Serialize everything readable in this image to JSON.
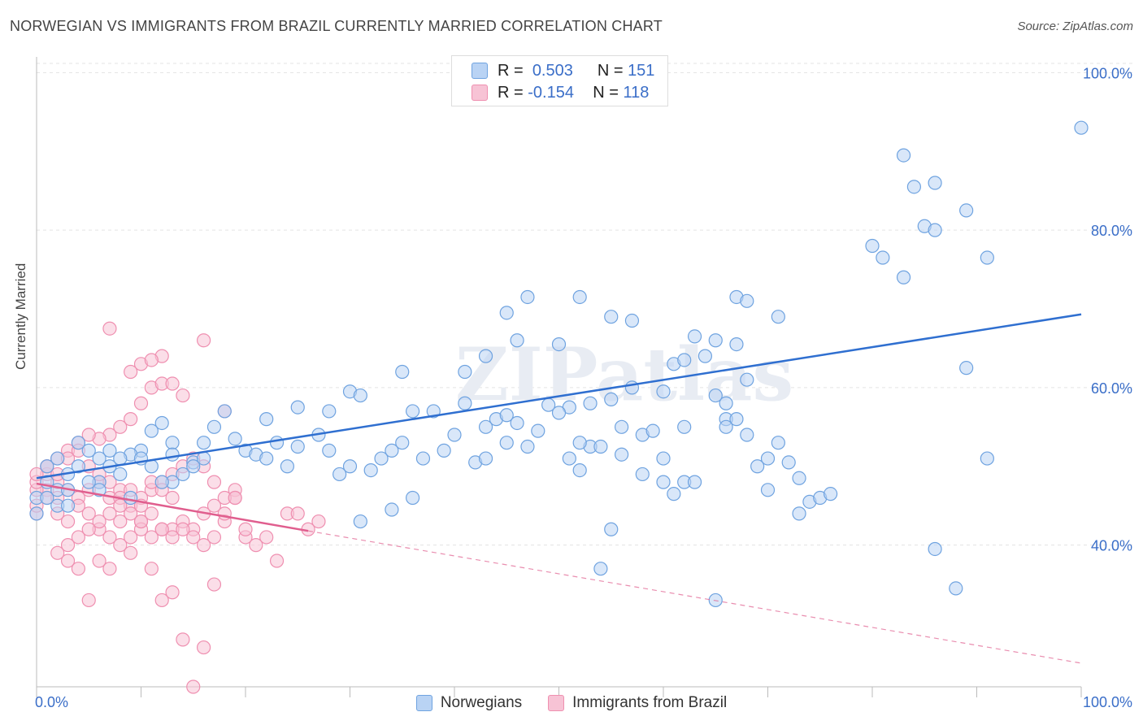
{
  "title": "NORWEGIAN VS IMMIGRANTS FROM BRAZIL CURRENTLY MARRIED CORRELATION CHART",
  "source": "Source: ZipAtlas.com",
  "watermark": "ZIPatlas",
  "colors": {
    "blue": "#6fa3e0",
    "blue_fill": "#b9d3f4",
    "blue_line": "#2f6fd0",
    "pink": "#ef8fb0",
    "pink_fill": "#f7c3d5",
    "pink_line": "#e05e8e",
    "axis_text": "#3a6ec8"
  },
  "legend": {
    "rows": [
      {
        "r_label": "R =",
        "r_value": "0.503",
        "n_label": "N =",
        "n_value": "151"
      },
      {
        "r_label": "R =",
        "r_value": "-0.154",
        "n_label": "N =",
        "n_value": "118"
      }
    ]
  },
  "chart_data": {
    "type": "scatter",
    "title": "NORWEGIAN VS IMMIGRANTS FROM BRAZIL CURRENTLY MARRIED CORRELATION CHART",
    "xlabel": "",
    "ylabel": "Currently Married",
    "xlim": [
      0,
      100
    ],
    "ylim": [
      22,
      102
    ],
    "x_tick_labels": [
      "0.0%",
      "100.0%"
    ],
    "y_ticks": [
      40,
      60,
      80,
      100
    ],
    "y_tick_labels": [
      "40.0%",
      "60.0%",
      "80.0%",
      "100.0%"
    ],
    "grid": true,
    "legend_position": "top-center",
    "series": [
      {
        "name": "Norwegians",
        "color": "#6fa3e0",
        "r": 0.503,
        "n": 151,
        "trend": {
          "x": [
            0,
            100
          ],
          "y": [
            48.5,
            69.3
          ]
        },
        "points": [
          [
            100,
            93
          ],
          [
            83,
            89.5
          ],
          [
            86,
            86
          ],
          [
            84,
            85.5
          ],
          [
            89,
            82.5
          ],
          [
            85,
            80.5
          ],
          [
            86,
            80
          ],
          [
            80,
            78
          ],
          [
            81,
            76.5
          ],
          [
            83,
            74
          ],
          [
            91,
            76.5
          ],
          [
            47,
            71.5
          ],
          [
            52,
            71.5
          ],
          [
            67,
            71.5
          ],
          [
            68,
            71
          ],
          [
            45,
            69.5
          ],
          [
            55,
            69
          ],
          [
            57,
            68.5
          ],
          [
            71,
            69
          ],
          [
            46,
            66
          ],
          [
            50,
            65.5
          ],
          [
            67,
            65.5
          ],
          [
            63,
            66.5
          ],
          [
            64,
            64
          ],
          [
            65,
            66
          ],
          [
            61,
            63
          ],
          [
            62,
            63.5
          ],
          [
            43,
            64
          ],
          [
            35,
            62
          ],
          [
            41,
            62
          ],
          [
            57,
            60
          ],
          [
            60,
            59.5
          ],
          [
            68,
            61
          ],
          [
            89,
            62.5
          ],
          [
            65,
            59
          ],
          [
            66,
            58
          ],
          [
            66,
            56
          ],
          [
            55,
            58.5
          ],
          [
            49,
            57.8
          ],
          [
            51,
            57.5
          ],
          [
            50,
            56.8
          ],
          [
            41,
            58
          ],
          [
            44,
            56
          ],
          [
            45,
            56.5
          ],
          [
            43,
            55
          ],
          [
            36,
            57
          ],
          [
            38,
            57
          ],
          [
            30,
            59.5
          ],
          [
            31,
            59
          ],
          [
            25,
            57.5
          ],
          [
            28,
            57
          ],
          [
            22,
            56
          ],
          [
            18,
            57
          ],
          [
            17,
            55
          ],
          [
            12,
            55.5
          ],
          [
            13,
            53
          ],
          [
            11,
            54.5
          ],
          [
            13,
            51.5
          ],
          [
            10,
            52
          ],
          [
            9,
            51.5
          ],
          [
            15,
            50.5
          ],
          [
            16,
            53
          ],
          [
            19,
            53.5
          ],
          [
            20,
            52
          ],
          [
            21,
            51.5
          ],
          [
            22,
            51
          ],
          [
            23,
            53
          ],
          [
            24,
            50
          ],
          [
            25,
            52.5
          ],
          [
            27,
            54
          ],
          [
            28,
            52
          ],
          [
            29,
            49
          ],
          [
            30,
            50
          ],
          [
            32,
            49.5
          ],
          [
            33,
            51
          ],
          [
            34,
            52
          ],
          [
            35,
            53
          ],
          [
            37,
            51
          ],
          [
            39,
            52
          ],
          [
            40,
            54
          ],
          [
            42,
            50.5
          ],
          [
            43,
            51
          ],
          [
            45,
            53
          ],
          [
            46,
            55.5
          ],
          [
            47,
            52.5
          ],
          [
            48,
            54.5
          ],
          [
            51,
            51
          ],
          [
            52,
            49.5
          ],
          [
            53,
            52.5
          ],
          [
            54,
            52.5
          ],
          [
            56,
            51.5
          ],
          [
            58,
            54
          ],
          [
            60,
            51
          ],
          [
            62,
            48
          ],
          [
            52,
            53
          ],
          [
            53,
            58
          ],
          [
            31,
            43
          ],
          [
            34,
            44.5
          ],
          [
            36,
            46
          ],
          [
            55,
            42
          ],
          [
            59,
            54.5
          ],
          [
            61,
            46.5
          ],
          [
            63,
            48
          ],
          [
            67,
            56
          ],
          [
            68,
            54
          ],
          [
            72,
            50.5
          ],
          [
            73,
            48.5
          ],
          [
            74,
            45.5
          ],
          [
            75,
            46
          ],
          [
            69,
            50
          ],
          [
            70,
            51
          ],
          [
            71,
            53
          ],
          [
            56,
            55
          ],
          [
            58,
            49
          ],
          [
            60,
            48
          ],
          [
            66,
            55
          ],
          [
            62,
            55
          ],
          [
            0,
            44
          ],
          [
            0,
            46
          ],
          [
            1,
            48
          ],
          [
            1,
            50
          ],
          [
            2,
            47
          ],
          [
            2,
            51
          ],
          [
            3,
            49
          ],
          [
            4,
            50
          ],
          [
            5,
            52
          ],
          [
            6,
            48
          ],
          [
            6,
            51
          ],
          [
            7,
            50
          ],
          [
            8,
            49
          ],
          [
            9,
            46
          ],
          [
            10,
            51
          ],
          [
            11,
            50
          ],
          [
            7,
            52
          ],
          [
            4,
            53
          ],
          [
            3,
            47
          ],
          [
            5,
            48
          ],
          [
            6,
            47
          ],
          [
            2,
            45
          ],
          [
            1,
            46
          ],
          [
            3,
            45
          ],
          [
            8,
            51
          ],
          [
            13,
            48
          ],
          [
            14,
            49
          ],
          [
            15,
            50
          ],
          [
            12,
            48
          ],
          [
            16,
            51
          ],
          [
            73,
            44
          ],
          [
            54,
            37
          ],
          [
            65,
            33
          ],
          [
            86,
            39.5
          ],
          [
            88,
            34.5
          ],
          [
            91,
            51
          ],
          [
            76,
            46.5
          ],
          [
            70,
            47
          ]
        ]
      },
      {
        "name": "Immigrants from Brazil",
        "color": "#ef8fb0",
        "r": -0.154,
        "n": 118,
        "trend": {
          "x": [
            0,
            26
          ],
          "y": [
            47.8,
            41.8
          ]
        },
        "trend_extension": {
          "x": [
            26,
            100
          ],
          "y": [
            41.8,
            25
          ]
        },
        "points": [
          [
            16,
            66
          ],
          [
            7,
            67.5
          ],
          [
            10,
            63
          ],
          [
            11,
            60
          ],
          [
            12,
            64
          ],
          [
            9,
            62
          ],
          [
            10,
            58
          ],
          [
            11,
            63.5
          ],
          [
            12,
            60.5
          ],
          [
            13,
            60.5
          ],
          [
            14,
            59
          ],
          [
            18,
            57
          ],
          [
            9,
            56
          ],
          [
            7,
            54
          ],
          [
            8,
            55
          ],
          [
            6,
            53.5
          ],
          [
            5,
            54
          ],
          [
            4,
            53
          ],
          [
            3,
            52
          ],
          [
            2,
            51
          ],
          [
            1,
            50
          ],
          [
            1,
            49
          ],
          [
            2,
            48
          ],
          [
            3,
            47
          ],
          [
            4,
            46
          ],
          [
            5,
            47
          ],
          [
            6,
            48
          ],
          [
            7,
            46
          ],
          [
            8,
            47
          ],
          [
            9,
            45
          ],
          [
            10,
            46
          ],
          [
            11,
            47
          ],
          [
            12,
            48
          ],
          [
            13,
            49
          ],
          [
            14,
            50
          ],
          [
            15,
            51
          ],
          [
            16,
            50
          ],
          [
            17,
            48
          ],
          [
            1,
            47
          ],
          [
            1,
            46
          ],
          [
            2,
            46
          ],
          [
            2,
            44
          ],
          [
            3,
            43
          ],
          [
            4,
            45
          ],
          [
            5,
            44
          ],
          [
            6,
            42
          ],
          [
            7,
            41
          ],
          [
            8,
            40
          ],
          [
            9,
            39
          ],
          [
            10,
            43
          ],
          [
            11,
            41
          ],
          [
            12,
            42
          ],
          [
            13,
            42
          ],
          [
            14,
            43
          ],
          [
            15,
            42
          ],
          [
            16,
            44
          ],
          [
            17,
            41
          ],
          [
            18,
            43
          ],
          [
            19,
            47
          ],
          [
            20,
            41
          ],
          [
            21,
            40
          ],
          [
            22,
            41
          ],
          [
            23,
            38
          ],
          [
            24,
            44
          ],
          [
            25,
            44
          ],
          [
            26,
            42
          ],
          [
            27,
            43
          ],
          [
            0,
            44
          ],
          [
            0,
            45
          ],
          [
            0,
            47
          ],
          [
            0,
            48
          ],
          [
            0,
            49
          ],
          [
            1,
            50
          ],
          [
            2,
            49
          ],
          [
            3,
            51
          ],
          [
            4,
            52
          ],
          [
            5,
            50
          ],
          [
            6,
            49
          ],
          [
            7,
            48
          ],
          [
            8,
            46
          ],
          [
            9,
            47
          ],
          [
            10,
            45
          ],
          [
            11,
            48
          ],
          [
            12,
            47
          ],
          [
            13,
            46
          ],
          [
            14,
            42
          ],
          [
            15,
            41
          ],
          [
            16,
            40
          ],
          [
            17,
            45
          ],
          [
            18,
            44
          ],
          [
            19,
            46
          ],
          [
            20,
            42
          ],
          [
            3,
            38
          ],
          [
            4,
            37
          ],
          [
            5,
            33
          ],
          [
            6,
            38
          ],
          [
            7,
            37
          ],
          [
            8,
            43
          ],
          [
            9,
            41
          ],
          [
            10,
            42
          ],
          [
            11,
            37
          ],
          [
            12,
            33
          ],
          [
            13,
            34
          ],
          [
            14,
            28
          ],
          [
            15,
            22
          ],
          [
            16,
            27
          ],
          [
            17,
            35
          ],
          [
            18,
            46
          ],
          [
            19,
            46
          ],
          [
            2,
            39
          ],
          [
            3,
            40
          ],
          [
            4,
            41
          ],
          [
            5,
            42
          ],
          [
            6,
            43
          ],
          [
            7,
            44
          ],
          [
            8,
            45
          ],
          [
            9,
            44
          ],
          [
            10,
            43
          ],
          [
            11,
            44
          ],
          [
            12,
            42
          ],
          [
            13,
            41
          ]
        ]
      }
    ]
  }
}
